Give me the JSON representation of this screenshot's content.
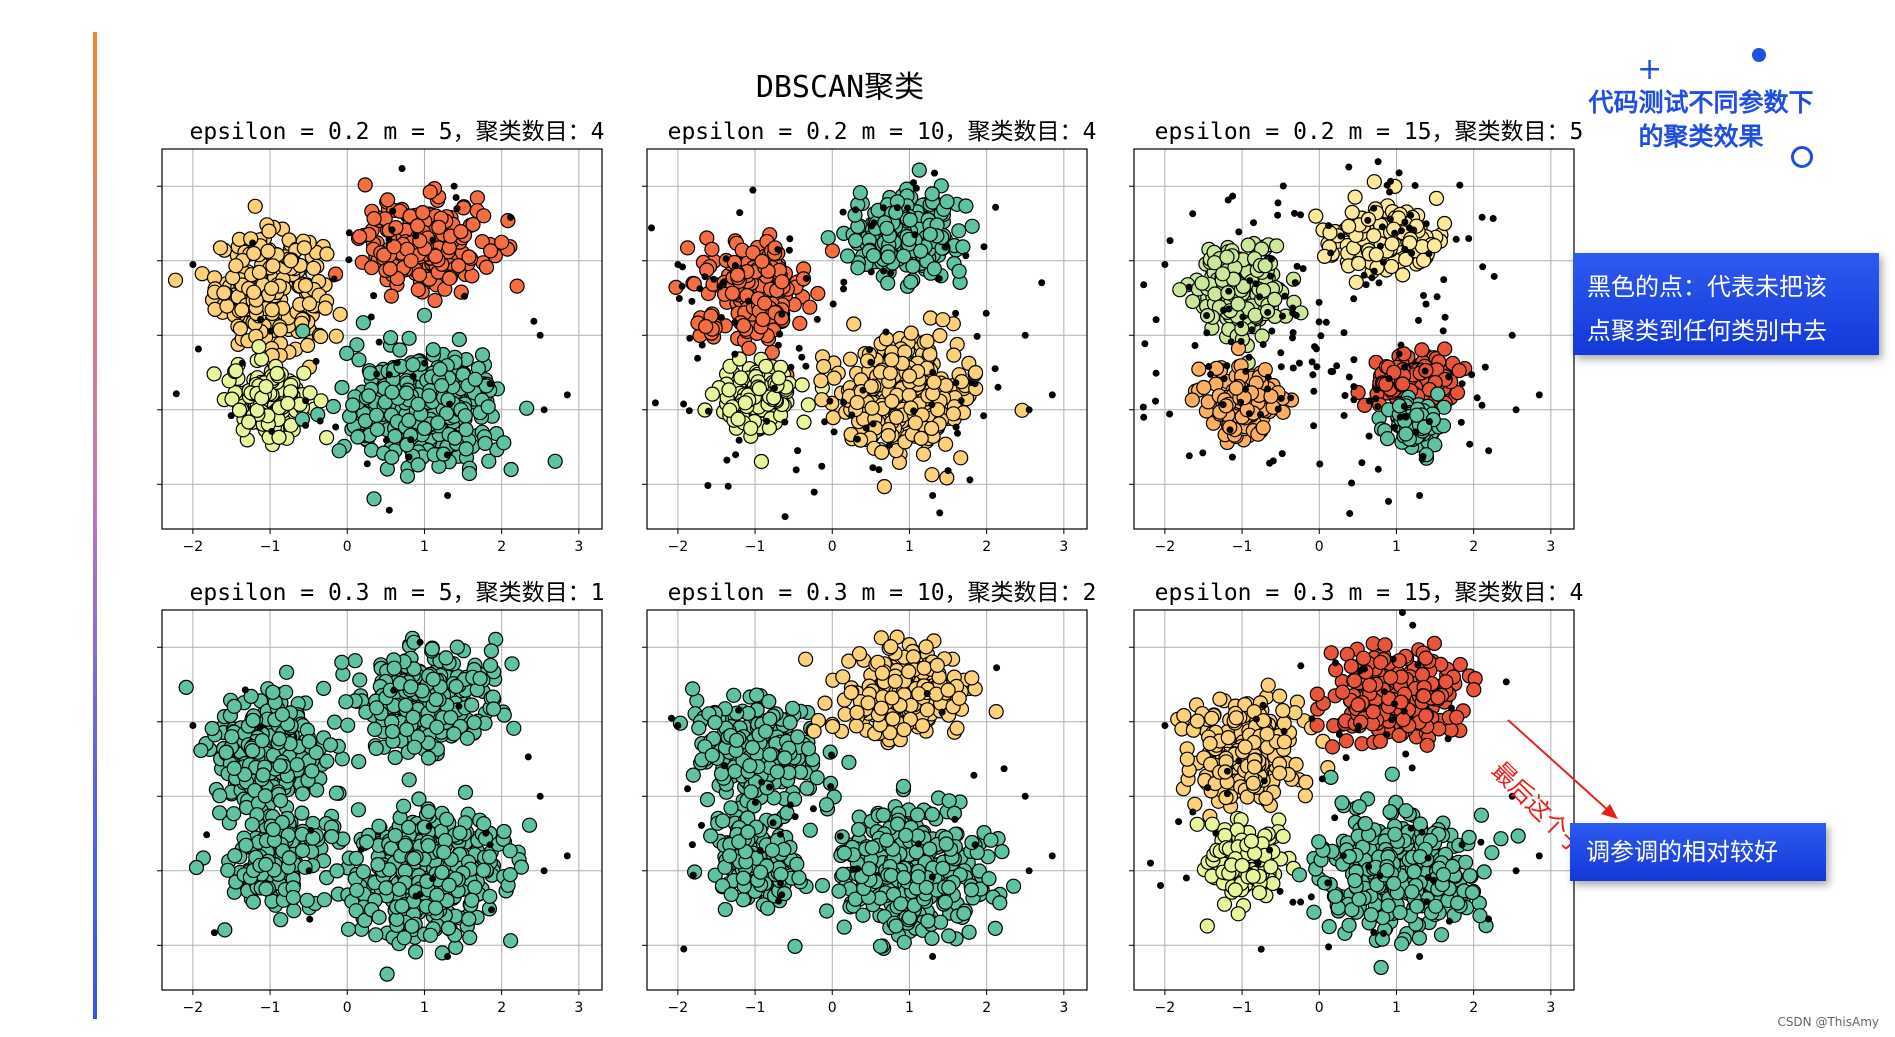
{
  "title": "DBSCAN聚类",
  "colors": {
    "noise": "#000000",
    "palette": [
      "#d53e4f",
      "#f46d43",
      "#fdae61",
      "#fee08b",
      "#e6f598",
      "#abdda4",
      "#66c2a5",
      "#3288bd"
    ]
  },
  "annotations": {
    "top_callout_line1": "代码测试不同参数下",
    "top_callout_line2": "的聚类效果",
    "note_line1": "黑色的点：代表未把该",
    "note_line2": "点聚类到任何类别中去",
    "diagonal_note": "最后这个子图",
    "bottom_note": "调参调的相对较好",
    "credit": "CSDN @ThisAmy"
  },
  "chart_data": [
    {
      "type": "scatter",
      "title": "epsilon = 0.2  m = 5，聚类数目：4",
      "xlim": [
        -2.4,
        3.3
      ],
      "ylim": [
        -2.6,
        2.5
      ],
      "xticks": [
        -2,
        -1,
        0,
        1,
        2,
        3
      ],
      "yticks": [
        -2,
        -1,
        0,
        1,
        2
      ],
      "grid": true,
      "clusters": [
        {
          "center": [
            -1.0,
            0.6
          ],
          "spread": [
            0.35,
            0.38
          ],
          "color": "#fdd17a"
        },
        {
          "center": [
            1.0,
            1.2
          ],
          "spread": [
            0.4,
            0.3
          ],
          "color": "#f46d43"
        },
        {
          "center": [
            -1.0,
            -0.85
          ],
          "spread": [
            0.25,
            0.25
          ],
          "color": "#e9f59b"
        },
        {
          "center": [
            1.0,
            -1.0
          ],
          "spread": [
            0.5,
            0.4
          ],
          "color": "#5fc2a0"
        }
      ],
      "noise_level": 0.25
    },
    {
      "type": "scatter",
      "title": "epsilon = 0.2  m = 10，聚类数目：4",
      "xlim": [
        -2.4,
        3.3
      ],
      "ylim": [
        -2.6,
        2.5
      ],
      "xticks": [
        -2,
        -1,
        0,
        1,
        2,
        3
      ],
      "yticks": [
        -2,
        -1,
        0,
        1,
        2
      ],
      "grid": true,
      "clusters": [
        {
          "center": [
            -1.0,
            0.6
          ],
          "spread": [
            0.33,
            0.32
          ],
          "color": "#f46d43"
        },
        {
          "center": [
            0.9,
            1.3
          ],
          "spread": [
            0.38,
            0.28
          ],
          "color": "#5fc2a0"
        },
        {
          "center": [
            -1.0,
            -0.85
          ],
          "spread": [
            0.23,
            0.23
          ],
          "color": "#e9f59b"
        },
        {
          "center": [
            0.9,
            -0.8
          ],
          "spread": [
            0.42,
            0.38
          ],
          "color": "#fdd17a"
        }
      ],
      "noise_level": 0.6
    },
    {
      "type": "scatter",
      "title": "epsilon = 0.2  m = 15，聚类数目：5",
      "xlim": [
        -2.4,
        3.3
      ],
      "ylim": [
        -2.6,
        2.5
      ],
      "xticks": [
        -2,
        -1,
        0,
        1,
        2,
        3
      ],
      "yticks": [
        -2,
        -1,
        0,
        1,
        2
      ],
      "grid": true,
      "clusters": [
        {
          "center": [
            -1.0,
            0.6
          ],
          "spread": [
            0.3,
            0.3
          ],
          "color": "#cbe89a"
        },
        {
          "center": [
            0.9,
            1.3
          ],
          "spread": [
            0.35,
            0.22
          ],
          "color": "#fee99a"
        },
        {
          "center": [
            -1.0,
            -0.9
          ],
          "spread": [
            0.22,
            0.22
          ],
          "color": "#fdae61"
        },
        {
          "center": [
            1.2,
            -0.6
          ],
          "spread": [
            0.28,
            0.18
          ],
          "color": "#e8553b"
        },
        {
          "center": [
            1.2,
            -1.2
          ],
          "spread": [
            0.15,
            0.15
          ],
          "color": "#5fc2a0"
        }
      ],
      "noise_level": 1.0
    },
    {
      "type": "scatter",
      "title": "epsilon = 0.3  m = 5，聚类数目：1",
      "xlim": [
        -2.4,
        3.3
      ],
      "ylim": [
        -2.6,
        2.5
      ],
      "xticks": [
        -2,
        -1,
        0,
        1,
        2,
        3
      ],
      "yticks": [
        -2,
        -1,
        0,
        1,
        2
      ],
      "grid": true,
      "clusters": [
        {
          "center": [
            -1.0,
            0.6
          ],
          "spread": [
            0.38,
            0.4
          ],
          "color": "#5fc2a0"
        },
        {
          "center": [
            1.0,
            1.3
          ],
          "spread": [
            0.45,
            0.35
          ],
          "color": "#5fc2a0"
        },
        {
          "center": [
            -1.0,
            -0.85
          ],
          "spread": [
            0.3,
            0.3
          ],
          "color": "#5fc2a0"
        },
        {
          "center": [
            1.0,
            -1.0
          ],
          "spread": [
            0.55,
            0.45
          ],
          "color": "#5fc2a0"
        }
      ],
      "noise_level": 0.1
    },
    {
      "type": "scatter",
      "title": "epsilon = 0.3  m = 10，聚类数目：2",
      "xlim": [
        -2.4,
        3.3
      ],
      "ylim": [
        -2.6,
        2.5
      ],
      "xticks": [
        -2,
        -1,
        0,
        1,
        2,
        3
      ],
      "yticks": [
        -2,
        -1,
        0,
        1,
        2
      ],
      "grid": true,
      "clusters": [
        {
          "center": [
            -1.0,
            0.6
          ],
          "spread": [
            0.36,
            0.36
          ],
          "color": "#5fc2a0"
        },
        {
          "center": [
            0.9,
            1.4
          ],
          "spread": [
            0.4,
            0.3
          ],
          "color": "#fdd17a"
        },
        {
          "center": [
            -1.0,
            -0.85
          ],
          "spread": [
            0.28,
            0.28
          ],
          "color": "#5fc2a0"
        },
        {
          "center": [
            1.0,
            -1.0
          ],
          "spread": [
            0.5,
            0.42
          ],
          "color": "#5fc2a0"
        }
      ],
      "noise_level": 0.2
    },
    {
      "type": "scatter",
      "title": "epsilon = 0.3  m = 15，聚类数目：4",
      "xlim": [
        -2.4,
        3.3
      ],
      "ylim": [
        -2.6,
        2.5
      ],
      "xticks": [
        -2,
        -1,
        0,
        1,
        2,
        3
      ],
      "yticks": [
        -2,
        -1,
        0,
        1,
        2
      ],
      "grid": true,
      "clusters": [
        {
          "center": [
            -1.0,
            0.6
          ],
          "spread": [
            0.35,
            0.38
          ],
          "color": "#fdd17a"
        },
        {
          "center": [
            1.0,
            1.3
          ],
          "spread": [
            0.42,
            0.3
          ],
          "color": "#e8553b"
        },
        {
          "center": [
            -1.0,
            -0.85
          ],
          "spread": [
            0.25,
            0.25
          ],
          "color": "#e9f59b"
        },
        {
          "center": [
            1.0,
            -1.0
          ],
          "spread": [
            0.5,
            0.4
          ],
          "color": "#5fc2a0"
        }
      ],
      "noise_level": 0.35
    }
  ]
}
